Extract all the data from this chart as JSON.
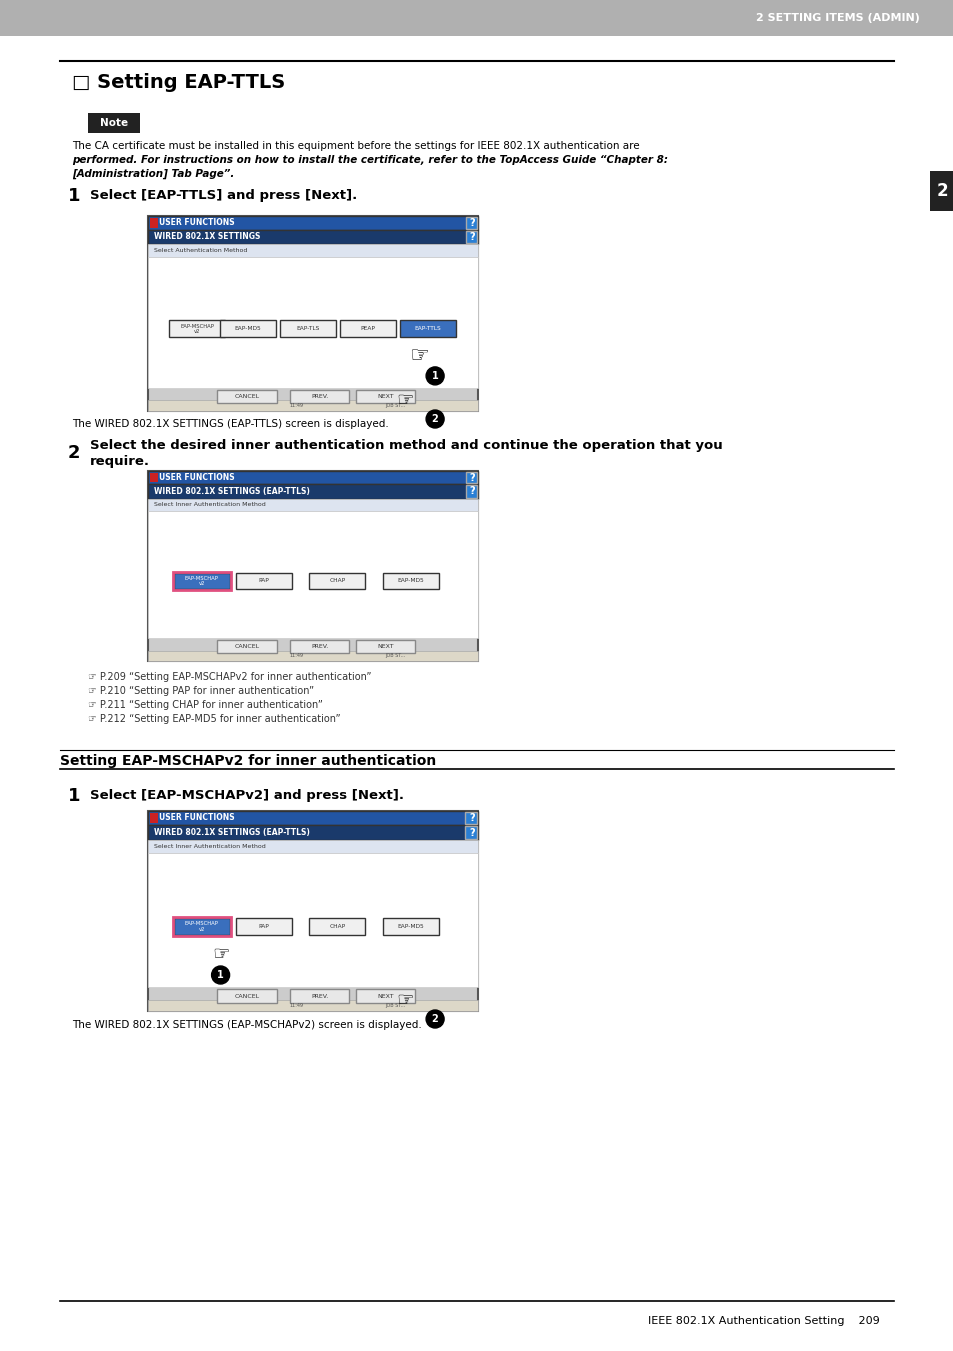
{
  "page_bg": "#ffffff",
  "header_bg": "#b0b0b0",
  "header_text": "2 SETTING ITEMS (ADMIN)",
  "header_text_color": "#ffffff",
  "side_tab_bg": "#222222",
  "side_tab_text": "2",
  "side_tab_color": "#ffffff",
  "title": "□ Setting EAP-TTLS",
  "note_bg": "#222222",
  "note_text": "Note",
  "note_body": "The CA certificate must be installed in this equipment before the settings for IEEE 802.1X authentication are\nperformed. For instructions on how to install the certificate, refer to the TopAccess Guide “Chapter 8:\n[Administration] Tab Page”.",
  "step1_num": "1",
  "step1_text": "Select [EAP-TTLS] and press [Next].",
  "screen1_title_bar": "USER FUNCTIONS",
  "screen1_subtitle": "WIRED 802.1X SETTINGS",
  "screen1_label": "Select Authentication Method",
  "screen1_buttons": [
    "EAP-MSCHAPv2",
    "EAP-MD5",
    "EAP-TLS",
    "PEAP",
    "EAP-TTLS"
  ],
  "screen1_active_btn": "EAP-TTLS",
  "screen1_caption": "The WIRED 802.1X SETTINGS (EAP-TTLS) screen is displayed.",
  "step2_num": "2",
  "step2_text": "Select the desired inner authentication method and continue the operation that you\nrequire.",
  "screen2_title_bar": "USER FUNCTIONS",
  "screen2_subtitle": "WIRED 802.1X SETTINGS (EAP-TTLS)",
  "screen2_label": "Select Inner Authentication Method",
  "screen2_buttons": [
    "EAP-MSCHAPv2",
    "PAP",
    "CHAP",
    "EAP-MD5"
  ],
  "screen2_active_btn": "EAP-MSCHAPv2",
  "refs": [
    "P.209 “Setting EAP-MSCHAPv2 for inner authentication”",
    "P.210 “Setting PAP for inner authentication”",
    "P.211 “Setting CHAP for inner authentication”",
    "P.212 “Setting EAP-MD5 for inner authentication”"
  ],
  "section2_title": "Setting EAP-MSCHAPv2 for inner authentication",
  "step3_num": "1",
  "step3_text": "Select [EAP-MSCHAPv2] and press [Next].",
  "screen3_title_bar": "USER FUNCTIONS",
  "screen3_subtitle": "WIRED 802.1X SETTINGS (EAP-TTLS)",
  "screen3_label": "Select Inner Authentication Method",
  "screen3_buttons": [
    "EAP-MSCHAPv2",
    "PAP",
    "CHAP",
    "EAP-MD5"
  ],
  "screen3_active_btn": "EAP-MSCHAPv2",
  "screen3_caption": "The WIRED 802.1X SETTINGS (EAP-MSCHAPv2) screen is displayed.",
  "footer_line": true,
  "footer_text": "IEEE 802.1X Authentication Setting    209",
  "blue_dark": "#1a3a6b",
  "blue_mid": "#2255a4",
  "blue_btn": "#3a6fbd",
  "blue_light": "#dce6f5",
  "screen_bg": "#e8e8e8",
  "btn_normal_bg": "#f0f0f0",
  "btn_normal_border": "#888888",
  "screen_border": "#555555"
}
